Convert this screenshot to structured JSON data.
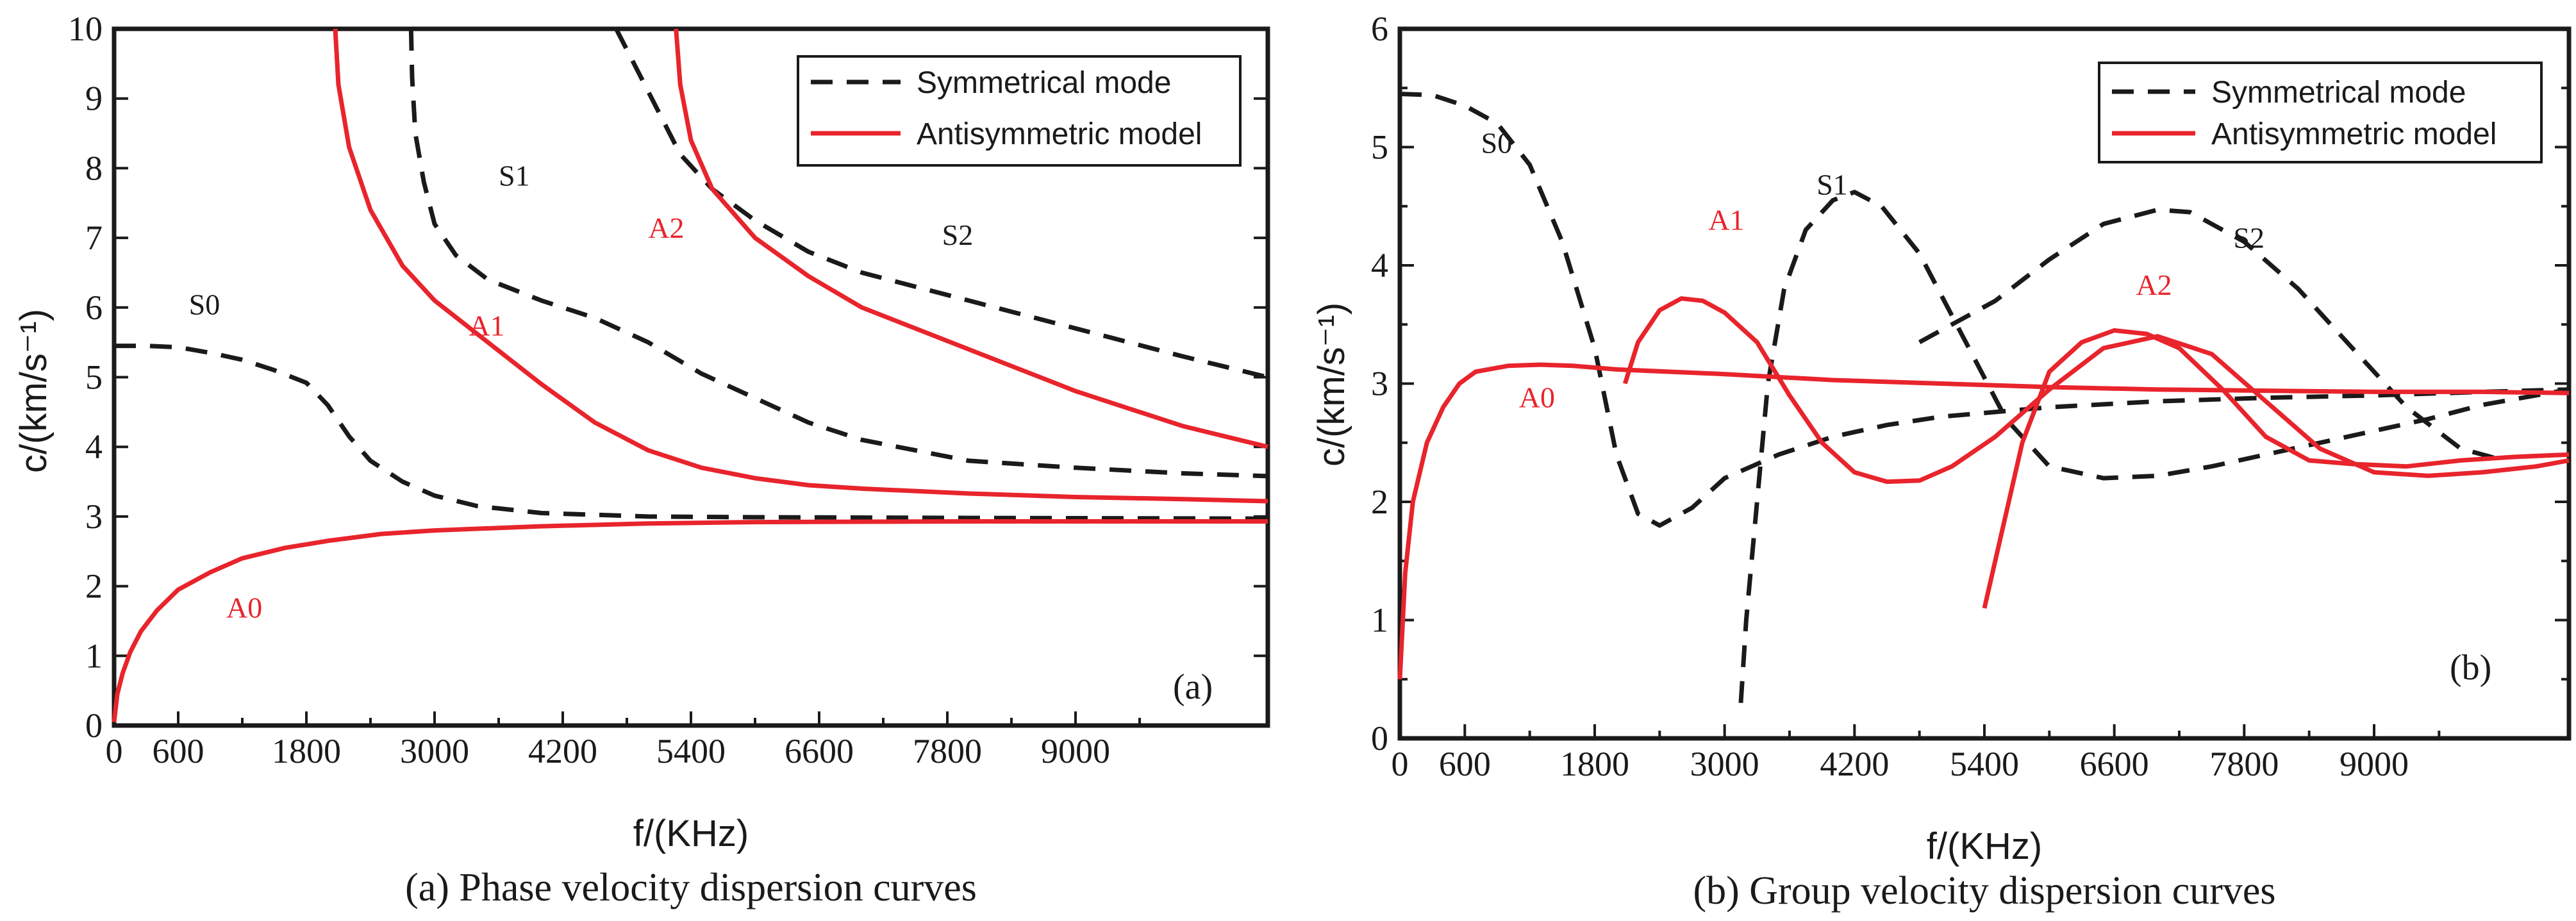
{
  "colors": {
    "symmetric": "#1a1a1a",
    "antisymmetric": "#e8242c",
    "axis": "#1a1a1a"
  },
  "chart_data": [
    {
      "type": "line",
      "panel_tag": "(a)",
      "caption": "(a) Phase velocity dispersion curves",
      "xlabel": "f/(KHz)",
      "ylabel": "c/(km/s⁻¹)",
      "xlim": [
        0,
        10800
      ],
      "ylim": [
        0,
        10
      ],
      "x_ticks": [
        0,
        600,
        1800,
        3000,
        4200,
        5400,
        6600,
        7800,
        9000
      ],
      "x_minor_ticks": [
        1200,
        2400,
        3600,
        4800,
        6000,
        7200,
        8400,
        9600
      ],
      "y_ticks": [
        0,
        1,
        2,
        3,
        4,
        5,
        6,
        7,
        8,
        9,
        10
      ],
      "legend": {
        "position": "top-right",
        "entries": [
          {
            "label": "Symmetrical mode",
            "style": "dashed",
            "color_key": "symmetric"
          },
          {
            "label": "Antisymmetric model",
            "style": "solid",
            "color_key": "antisymmetric"
          }
        ]
      },
      "series": [
        {
          "name": "S0",
          "mode": "symmetric",
          "label_at": [
            700,
            5.9
          ],
          "points": [
            [
              0,
              5.45
            ],
            [
              300,
              5.45
            ],
            [
              600,
              5.43
            ],
            [
              900,
              5.35
            ],
            [
              1200,
              5.25
            ],
            [
              1500,
              5.1
            ],
            [
              1800,
              4.92
            ],
            [
              2000,
              4.6
            ],
            [
              2200,
              4.15
            ],
            [
              2400,
              3.8
            ],
            [
              2700,
              3.5
            ],
            [
              3000,
              3.3
            ],
            [
              3400,
              3.15
            ],
            [
              4000,
              3.05
            ],
            [
              5000,
              3.0
            ],
            [
              6000,
              2.99
            ],
            [
              8000,
              2.98
            ],
            [
              10800,
              2.97
            ]
          ]
        },
        {
          "name": "S1",
          "mode": "symmetric",
          "label_at": [
            3600,
            7.75
          ],
          "points": [
            [
              2780,
              10.0
            ],
            [
              2790,
              9.3
            ],
            [
              2820,
              8.5
            ],
            [
              2900,
              7.8
            ],
            [
              3000,
              7.2
            ],
            [
              3200,
              6.75
            ],
            [
              3500,
              6.4
            ],
            [
              4000,
              6.1
            ],
            [
              4500,
              5.85
            ],
            [
              5000,
              5.5
            ],
            [
              5500,
              5.05
            ],
            [
              6000,
              4.7
            ],
            [
              6500,
              4.35
            ],
            [
              7000,
              4.1
            ],
            [
              7500,
              3.95
            ],
            [
              8000,
              3.8
            ],
            [
              9000,
              3.7
            ],
            [
              10000,
              3.62
            ],
            [
              10800,
              3.58
            ]
          ]
        },
        {
          "name": "S2",
          "mode": "symmetric",
          "label_at": [
            7750,
            6.9
          ],
          "points": [
            [
              4700,
              10.0
            ],
            [
              4900,
              9.4
            ],
            [
              5100,
              8.8
            ],
            [
              5300,
              8.2
            ],
            [
              5600,
              7.7
            ],
            [
              6000,
              7.25
            ],
            [
              6500,
              6.8
            ],
            [
              7000,
              6.5
            ],
            [
              7500,
              6.3
            ],
            [
              8000,
              6.1
            ],
            [
              8500,
              5.9
            ],
            [
              9000,
              5.7
            ],
            [
              9500,
              5.5
            ],
            [
              10000,
              5.3
            ],
            [
              10800,
              5.0
            ]
          ]
        },
        {
          "name": "A0",
          "mode": "antisymmetric",
          "label_at": [
            1050,
            1.55
          ],
          "points": [
            [
              0,
              0.05
            ],
            [
              30,
              0.45
            ],
            [
              80,
              0.75
            ],
            [
              150,
              1.05
            ],
            [
              250,
              1.35
            ],
            [
              400,
              1.65
            ],
            [
              600,
              1.95
            ],
            [
              900,
              2.2
            ],
            [
              1200,
              2.4
            ],
            [
              1600,
              2.55
            ],
            [
              2000,
              2.65
            ],
            [
              2500,
              2.75
            ],
            [
              3000,
              2.8
            ],
            [
              4000,
              2.86
            ],
            [
              5000,
              2.9
            ],
            [
              6000,
              2.92
            ],
            [
              8000,
              2.93
            ],
            [
              10800,
              2.93
            ]
          ]
        },
        {
          "name": "A1",
          "mode": "antisymmetric",
          "label_at": [
            3320,
            5.6
          ],
          "points": [
            [
              2070,
              10.0
            ],
            [
              2100,
              9.2
            ],
            [
              2200,
              8.3
            ],
            [
              2400,
              7.4
            ],
            [
              2700,
              6.6
            ],
            [
              3000,
              6.1
            ],
            [
              3500,
              5.5
            ],
            [
              4000,
              4.9
            ],
            [
              4500,
              4.35
            ],
            [
              5000,
              3.95
            ],
            [
              5500,
              3.7
            ],
            [
              6000,
              3.55
            ],
            [
              6500,
              3.45
            ],
            [
              7000,
              3.4
            ],
            [
              8000,
              3.33
            ],
            [
              9000,
              3.28
            ],
            [
              10000,
              3.25
            ],
            [
              10800,
              3.22
            ]
          ]
        },
        {
          "name": "A2",
          "mode": "antisymmetric",
          "label_at": [
            5000,
            7.0
          ],
          "points": [
            [
              5260,
              10.0
            ],
            [
              5300,
              9.2
            ],
            [
              5400,
              8.4
            ],
            [
              5600,
              7.7
            ],
            [
              6000,
              7.0
            ],
            [
              6500,
              6.45
            ],
            [
              7000,
              6.0
            ],
            [
              7500,
              5.7
            ],
            [
              8000,
              5.4
            ],
            [
              8500,
              5.1
            ],
            [
              9000,
              4.8
            ],
            [
              9500,
              4.55
            ],
            [
              10000,
              4.3
            ],
            [
              10800,
              4.0
            ]
          ]
        }
      ]
    },
    {
      "type": "line",
      "panel_tag": "(b)",
      "caption": "(b) Group velocity dispersion curves",
      "xlabel": "f/(KHz)",
      "ylabel": "c/(km/s⁻¹)",
      "xlim": [
        0,
        10800
      ],
      "ylim": [
        0,
        6
      ],
      "x_ticks": [
        0,
        600,
        1800,
        3000,
        4200,
        5400,
        6600,
        7800,
        9000
      ],
      "x_minor_ticks": [
        1200,
        2400,
        3600,
        4800,
        6000,
        7200,
        8400,
        9600
      ],
      "y_ticks": [
        0,
        1,
        2,
        3,
        4,
        5,
        6
      ],
      "legend": {
        "position": "top-right",
        "entries": [
          {
            "label": "Symmetrical mode",
            "style": "dashed",
            "color_key": "symmetric"
          },
          {
            "label": "Antisymmetric model",
            "style": "solid",
            "color_key": "antisymmetric"
          }
        ]
      },
      "series": [
        {
          "name": "S0",
          "mode": "symmetric",
          "label_at": [
            750,
            4.95
          ],
          "points": [
            [
              0,
              5.45
            ],
            [
              300,
              5.44
            ],
            [
              600,
              5.35
            ],
            [
              900,
              5.2
            ],
            [
              1200,
              4.85
            ],
            [
              1500,
              4.2
            ],
            [
              1800,
              3.3
            ],
            [
              2000,
              2.4
            ],
            [
              2200,
              1.9
            ],
            [
              2400,
              1.8
            ],
            [
              2700,
              1.95
            ],
            [
              3000,
              2.2
            ],
            [
              3500,
              2.4
            ],
            [
              4000,
              2.55
            ],
            [
              4500,
              2.65
            ],
            [
              5000,
              2.72
            ],
            [
              6000,
              2.8
            ],
            [
              7000,
              2.85
            ],
            [
              8000,
              2.88
            ],
            [
              9000,
              2.9
            ],
            [
              10000,
              2.93
            ],
            [
              10800,
              2.95
            ]
          ]
        },
        {
          "name": "S1",
          "mode": "symmetric",
          "label_at": [
            3850,
            4.6
          ],
          "points": [
            [
              3150,
              0.3
            ],
            [
              3200,
              1.0
            ],
            [
              3300,
              2.0
            ],
            [
              3400,
              3.0
            ],
            [
              3550,
              3.8
            ],
            [
              3750,
              4.3
            ],
            [
              4000,
              4.55
            ],
            [
              4200,
              4.62
            ],
            [
              4450,
              4.5
            ],
            [
              4800,
              4.1
            ],
            [
              5200,
              3.4
            ],
            [
              5600,
              2.7
            ],
            [
              6000,
              2.3
            ],
            [
              6500,
              2.2
            ],
            [
              7000,
              2.22
            ],
            [
              7500,
              2.3
            ],
            [
              8000,
              2.4
            ],
            [
              8500,
              2.5
            ],
            [
              9000,
              2.6
            ],
            [
              9500,
              2.7
            ],
            [
              10000,
              2.82
            ],
            [
              10800,
              2.95
            ]
          ]
        },
        {
          "name": "S2",
          "mode": "symmetric",
          "label_at": [
            7700,
            4.15
          ],
          "points": [
            [
              4800,
              3.35
            ],
            [
              5500,
              3.7
            ],
            [
              6000,
              4.05
            ],
            [
              6500,
              4.35
            ],
            [
              7000,
              4.47
            ],
            [
              7300,
              4.45
            ],
            [
              7800,
              4.2
            ],
            [
              8300,
              3.8
            ],
            [
              8800,
              3.3
            ],
            [
              9300,
              2.8
            ],
            [
              9800,
              2.45
            ],
            [
              10200,
              2.35
            ]
          ]
        },
        {
          "name": "A0",
          "mode": "antisymmetric",
          "label_at": [
            1100,
            2.8
          ],
          "points": [
            [
              0,
              0.5
            ],
            [
              50,
              1.4
            ],
            [
              120,
              2.0
            ],
            [
              250,
              2.5
            ],
            [
              400,
              2.8
            ],
            [
              550,
              3.0
            ],
            [
              700,
              3.1
            ],
            [
              1000,
              3.15
            ],
            [
              1300,
              3.16
            ],
            [
              1600,
              3.15
            ],
            [
              2000,
              3.12
            ],
            [
              3000,
              3.08
            ],
            [
              4000,
              3.03
            ],
            [
              5000,
              3.0
            ],
            [
              6000,
              2.97
            ],
            [
              7000,
              2.95
            ],
            [
              8000,
              2.94
            ],
            [
              9000,
              2.93
            ],
            [
              10000,
              2.93
            ],
            [
              10800,
              2.92
            ]
          ]
        },
        {
          "name": "A1",
          "mode": "antisymmetric",
          "label_at": [
            2850,
            4.3
          ],
          "points": [
            [
              2080,
              3.0
            ],
            [
              2200,
              3.35
            ],
            [
              2400,
              3.62
            ],
            [
              2600,
              3.72
            ],
            [
              2800,
              3.7
            ],
            [
              3000,
              3.6
            ],
            [
              3300,
              3.35
            ],
            [
              3600,
              2.9
            ],
            [
              3900,
              2.5
            ],
            [
              4200,
              2.25
            ],
            [
              4500,
              2.17
            ],
            [
              4800,
              2.18
            ],
            [
              5100,
              2.3
            ],
            [
              5500,
              2.55
            ],
            [
              6000,
              2.95
            ],
            [
              6500,
              3.3
            ],
            [
              7000,
              3.4
            ],
            [
              7500,
              3.25
            ],
            [
              8000,
              2.85
            ],
            [
              8500,
              2.45
            ],
            [
              9000,
              2.25
            ],
            [
              9500,
              2.22
            ],
            [
              10000,
              2.25
            ],
            [
              10500,
              2.3
            ],
            [
              10800,
              2.35
            ]
          ]
        },
        {
          "name": "A2",
          "mode": "antisymmetric",
          "label_at": [
            6800,
            3.75
          ],
          "points": [
            [
              5400,
              1.1
            ],
            [
              5550,
              1.7
            ],
            [
              5750,
              2.5
            ],
            [
              6000,
              3.1
            ],
            [
              6300,
              3.35
            ],
            [
              6600,
              3.45
            ],
            [
              6900,
              3.42
            ],
            [
              7200,
              3.3
            ],
            [
              7600,
              2.95
            ],
            [
              8000,
              2.55
            ],
            [
              8400,
              2.35
            ],
            [
              8800,
              2.32
            ],
            [
              9300,
              2.3
            ],
            [
              9800,
              2.35
            ],
            [
              10300,
              2.38
            ],
            [
              10800,
              2.4
            ]
          ]
        }
      ]
    }
  ]
}
